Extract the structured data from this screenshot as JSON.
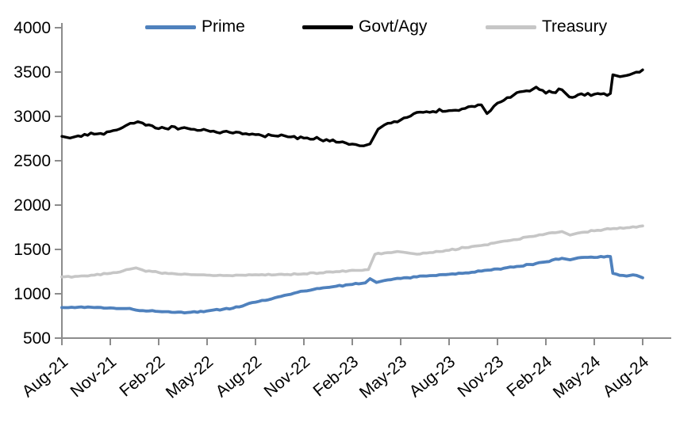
{
  "chart_data": {
    "type": "line",
    "title": "",
    "xlabel": "",
    "ylabel": "",
    "grid": false,
    "legend_position": "top",
    "ylim": [
      500,
      4000
    ],
    "y_ticks": [
      500,
      1000,
      1500,
      2000,
      2500,
      3000,
      3500,
      4000
    ],
    "x_tick_labels": [
      "Aug-21",
      "Nov-21",
      "Feb-22",
      "May-22",
      "Aug-22",
      "Nov-22",
      "Feb-23",
      "May-23",
      "Aug-23",
      "Nov-23",
      "Feb-24",
      "May-24",
      "Aug-24"
    ],
    "x_months_total": 36,
    "x_tick_interval_months": 3,
    "axis_color": "#8c8c8c",
    "series": [
      {
        "name": "Prime",
        "color": "#4F81BD",
        "points": [
          [
            0,
            845
          ],
          [
            1,
            848
          ],
          [
            2,
            845
          ],
          [
            3,
            840
          ],
          [
            4,
            833
          ],
          [
            5,
            810
          ],
          [
            6,
            800
          ],
          [
            7,
            790
          ],
          [
            8,
            792
          ],
          [
            9,
            806
          ],
          [
            10,
            826
          ],
          [
            11,
            852
          ],
          [
            12,
            905
          ],
          [
            13,
            942
          ],
          [
            14,
            988
          ],
          [
            15,
            1030
          ],
          [
            16,
            1060
          ],
          [
            17,
            1085
          ],
          [
            18,
            1105
          ],
          [
            18.8,
            1122
          ],
          [
            19.1,
            1170
          ],
          [
            19.5,
            1128
          ],
          [
            20,
            1150
          ],
          [
            21,
            1172
          ],
          [
            22,
            1190
          ],
          [
            23,
            1205
          ],
          [
            24,
            1220
          ],
          [
            25,
            1235
          ],
          [
            26,
            1255
          ],
          [
            27,
            1280
          ],
          [
            28,
            1300
          ],
          [
            29,
            1330
          ],
          [
            30,
            1360
          ],
          [
            31,
            1400
          ],
          [
            31.5,
            1383
          ],
          [
            32,
            1405
          ],
          [
            33,
            1410
          ],
          [
            34,
            1420
          ],
          [
            34.15,
            1230
          ],
          [
            35,
            1200
          ],
          [
            35.4,
            1213
          ],
          [
            36,
            1180
          ]
        ]
      },
      {
        "name": "Govt/Agy",
        "color": "#000000",
        "points": [
          [
            0,
            2775
          ],
          [
            0.5,
            2755
          ],
          [
            1,
            2780
          ],
          [
            2,
            2800
          ],
          [
            3,
            2830
          ],
          [
            4,
            2900
          ],
          [
            4.7,
            2940
          ],
          [
            5,
            2925
          ],
          [
            6,
            2862
          ],
          [
            7,
            2882
          ],
          [
            8,
            2855
          ],
          [
            9,
            2842
          ],
          [
            10,
            2828
          ],
          [
            11,
            2820
          ],
          [
            12,
            2795
          ],
          [
            13,
            2785
          ],
          [
            14,
            2770
          ],
          [
            15,
            2755
          ],
          [
            16,
            2740
          ],
          [
            17,
            2710
          ],
          [
            18,
            2688
          ],
          [
            18.7,
            2668
          ],
          [
            19.1,
            2690
          ],
          [
            19.6,
            2855
          ],
          [
            20,
            2905
          ],
          [
            21,
            2960
          ],
          [
            22,
            3045
          ],
          [
            23,
            3055
          ],
          [
            24,
            3065
          ],
          [
            25,
            3090
          ],
          [
            26,
            3130
          ],
          [
            26.35,
            3032
          ],
          [
            27,
            3150
          ],
          [
            28,
            3240
          ],
          [
            29,
            3285
          ],
          [
            29.4,
            3330
          ],
          [
            30,
            3262
          ],
          [
            31,
            3300
          ],
          [
            31.45,
            3220
          ],
          [
            32,
            3245
          ],
          [
            33,
            3250
          ],
          [
            34,
            3258
          ],
          [
            34.15,
            3470
          ],
          [
            34.6,
            3448
          ],
          [
            35,
            3462
          ],
          [
            36,
            3525
          ]
        ]
      },
      {
        "name": "Treasury",
        "color": "#C6C6C6",
        "points": [
          [
            0,
            1190
          ],
          [
            1,
            1196
          ],
          [
            2,
            1210
          ],
          [
            3,
            1230
          ],
          [
            4,
            1272
          ],
          [
            4.6,
            1292
          ],
          [
            5,
            1268
          ],
          [
            6,
            1240
          ],
          [
            7,
            1225
          ],
          [
            8,
            1215
          ],
          [
            9,
            1210
          ],
          [
            10,
            1205
          ],
          [
            11,
            1210
          ],
          [
            12,
            1215
          ],
          [
            13,
            1212
          ],
          [
            14,
            1218
          ],
          [
            15,
            1225
          ],
          [
            16,
            1235
          ],
          [
            17,
            1250
          ],
          [
            18,
            1265
          ],
          [
            19,
            1272
          ],
          [
            19.4,
            1445
          ],
          [
            20,
            1460
          ],
          [
            21,
            1472
          ],
          [
            22,
            1446
          ],
          [
            23,
            1465
          ],
          [
            24,
            1490
          ],
          [
            25,
            1520
          ],
          [
            26,
            1545
          ],
          [
            27,
            1580
          ],
          [
            28,
            1610
          ],
          [
            29,
            1645
          ],
          [
            30,
            1675
          ],
          [
            31,
            1702
          ],
          [
            31.5,
            1662
          ],
          [
            32,
            1685
          ],
          [
            33,
            1710
          ],
          [
            34,
            1730
          ],
          [
            35,
            1745
          ],
          [
            36,
            1765
          ]
        ]
      }
    ]
  }
}
